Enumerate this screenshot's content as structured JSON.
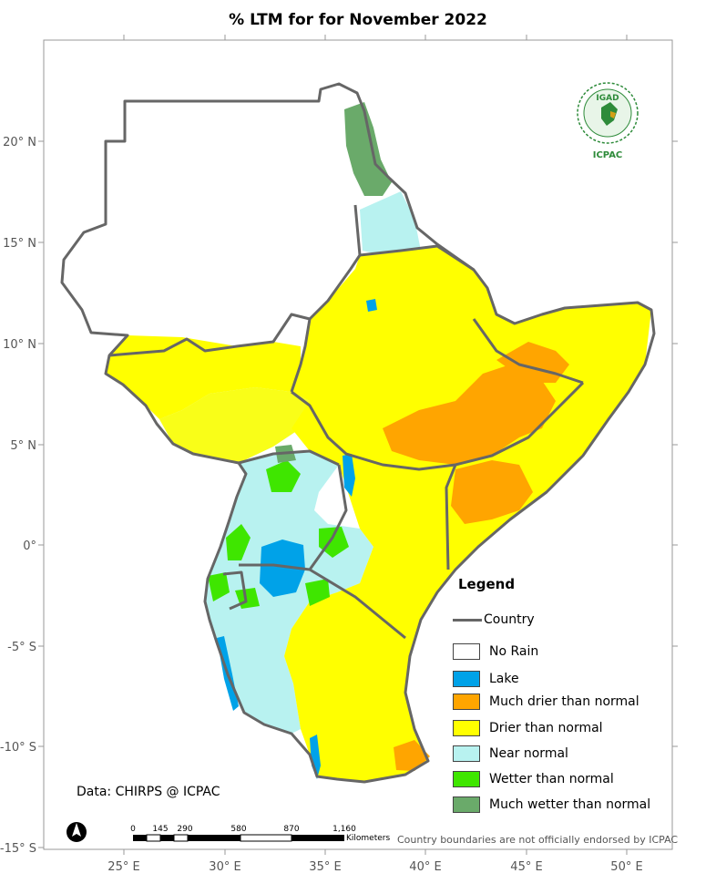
{
  "title": "% LTM for  for November 2022",
  "axes": {
    "lat_labels": [
      "20° N",
      "15° N",
      "10° N",
      "5° N",
      "0°",
      "-5° S",
      "-10° S",
      "-15° S"
    ],
    "lon_labels": [
      "25° E",
      "30° E",
      "35° E",
      "40° E",
      "45° E",
      "50° E"
    ]
  },
  "legend": {
    "title": "Legend",
    "country_label": "Country",
    "items": [
      {
        "label": "No Rain",
        "color": "#ffffff"
      },
      {
        "label": "Lake",
        "color": "#00a2e8"
      },
      {
        "label": "Much drier than normal",
        "color": "#ffa500"
      },
      {
        "label": "Drier than normal",
        "color": "#ffff00"
      },
      {
        "label": "Near normal",
        "color": "#b8f2f0"
      },
      {
        "label": "Wetter than normal",
        "color": "#3fe600"
      },
      {
        "label": "Much wetter than normal",
        "color": "#6aaa6a"
      }
    ]
  },
  "data_credit": "Data: CHIRPS @ ICPAC",
  "disclaimer": "Country boundaries are not officially endorsed by ICPAC",
  "scale_bar": {
    "ticks": [
      "0",
      "145",
      "290",
      "580",
      "870",
      "1,160"
    ],
    "unit": "Kilometers"
  },
  "logo": {
    "top_text": "IGAD",
    "bottom_text": "ICPAC"
  },
  "colors": {
    "border": "#666666",
    "frame": "#999999"
  }
}
